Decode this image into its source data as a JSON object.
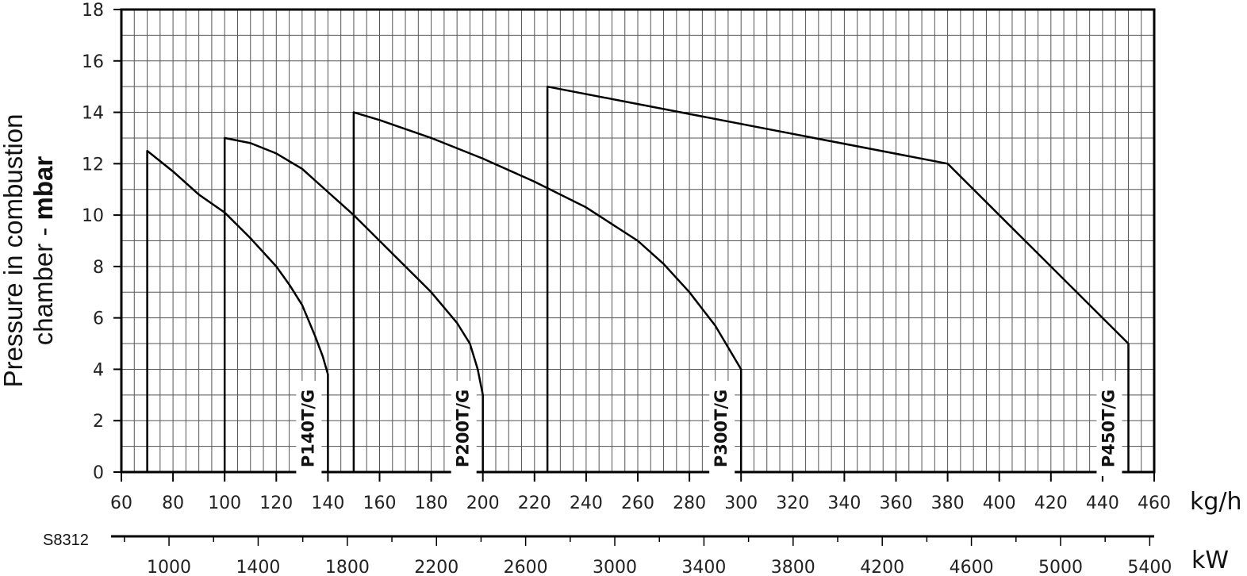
{
  "chart_code": "S8312",
  "chart_data": {
    "type": "line",
    "ylabel_line1": "Pressure in combustion",
    "ylabel_line2_prefix": "chamber - ",
    "ylabel_line2_bold": "mbar",
    "xunit_primary": "kg/h",
    "xunit_secondary": "kW",
    "xlim": [
      60,
      460
    ],
    "ylim": [
      0,
      18
    ],
    "x_ticks": [
      "60",
      "80",
      "100",
      "120",
      "140",
      "160",
      "180",
      "200",
      "220",
      "240",
      "260",
      "280",
      "300",
      "320",
      "340",
      "360",
      "380",
      "400",
      "420",
      "440",
      "460"
    ],
    "y_ticks": [
      "0",
      "2",
      "4",
      "6",
      "8",
      "10",
      "12",
      "14",
      "16",
      "18"
    ],
    "kw_ticks": [
      "1000",
      "1400",
      "1800",
      "2200",
      "2600",
      "3000",
      "3400",
      "3800",
      "4200",
      "4600",
      "5000",
      "5400"
    ],
    "kw_range": [
      740,
      5420
    ],
    "grid": true,
    "series": [
      {
        "name": "P140T/G",
        "points": [
          [
            70,
            0
          ],
          [
            70,
            12.5
          ],
          [
            80,
            11.7
          ],
          [
            90,
            10.8
          ],
          [
            100,
            10.1
          ],
          [
            110,
            9.1
          ],
          [
            120,
            8.0
          ],
          [
            125,
            7.3
          ],
          [
            130,
            6.5
          ],
          [
            135,
            5.3
          ],
          [
            138,
            4.5
          ],
          [
            140,
            3.8
          ],
          [
            140,
            0
          ]
        ]
      },
      {
        "name": "P200T/G",
        "points": [
          [
            100,
            0
          ],
          [
            100,
            13
          ],
          [
            110,
            12.8
          ],
          [
            120,
            12.4
          ],
          [
            130,
            11.8
          ],
          [
            140,
            10.9
          ],
          [
            150,
            10.0
          ],
          [
            160,
            9.0
          ],
          [
            170,
            8.0
          ],
          [
            180,
            7.0
          ],
          [
            185,
            6.4
          ],
          [
            190,
            5.8
          ],
          [
            195,
            5.0
          ],
          [
            198,
            4.0
          ],
          [
            200,
            3.0
          ],
          [
            200,
            0
          ]
        ]
      },
      {
        "name": "P300T/G",
        "points": [
          [
            150,
            0
          ],
          [
            150,
            14
          ],
          [
            160,
            13.7
          ],
          [
            180,
            13.0
          ],
          [
            200,
            12.2
          ],
          [
            220,
            11.3
          ],
          [
            240,
            10.3
          ],
          [
            260,
            9.0
          ],
          [
            270,
            8.1
          ],
          [
            280,
            7.0
          ],
          [
            290,
            5.7
          ],
          [
            300,
            4.0
          ],
          [
            300,
            0
          ]
        ]
      },
      {
        "name": "P450T/G",
        "points": [
          [
            225,
            0
          ],
          [
            225,
            15
          ],
          [
            380,
            12
          ],
          [
            450,
            5
          ],
          [
            450,
            0
          ]
        ]
      }
    ]
  }
}
